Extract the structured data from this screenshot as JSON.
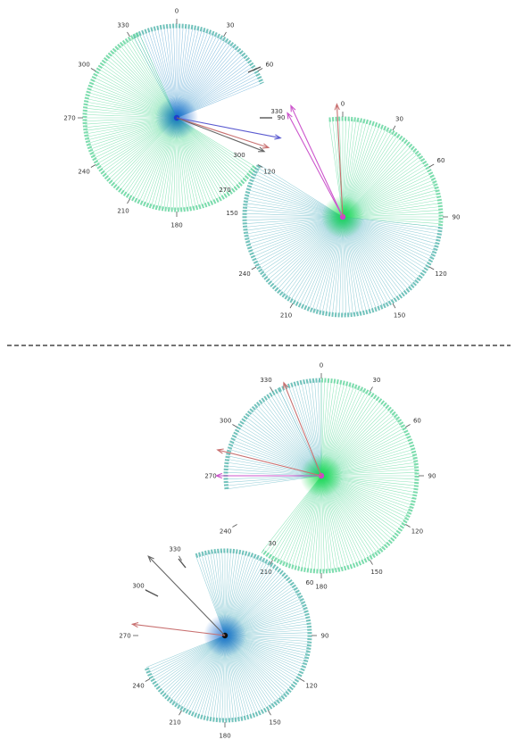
{
  "colors": {
    "ray_blue": "#2f8fc8",
    "ray_green": "#2fd080",
    "ray_teal": "#3aa6b8",
    "tip_teal": "#5ab8b0",
    "tip_green": "#66d6a0",
    "hub_blue": "#1f6fd0",
    "hub_green": "#22dd55",
    "black": "#111111",
    "arrow_blue": "#5a5ad0",
    "arrow_red": "#c87070",
    "arrow_magenta": "#cc55cc",
    "arrow_gray": "#666666",
    "tick": "#555555",
    "divider": "#222222"
  },
  "fans": [
    {
      "id": "fan-top-left",
      "hub_color": "#1f3fcc",
      "segments": [
        {
          "from": -28,
          "to": 68,
          "color": "blue"
        },
        {
          "from": 122,
          "to": 336,
          "color": "green"
        }
      ],
      "labels": [
        {
          "angle": 0,
          "text": "0"
        },
        {
          "angle": 30,
          "text": "30"
        },
        {
          "angle": 60,
          "text": "60"
        },
        {
          "angle": 120,
          "text": "120"
        },
        {
          "angle": 180,
          "text": "180"
        },
        {
          "angle": 210,
          "text": "210"
        },
        {
          "angle": 240,
          "text": "240"
        },
        {
          "angle": 270,
          "text": "270"
        },
        {
          "angle": 300,
          "text": "300"
        },
        {
          "angle": 330,
          "text": "330"
        }
      ],
      "extra_labels": [
        {
          "text": "300",
          "at": "inside-lower-right"
        },
        {
          "text": "270",
          "at": "inside-bottom-right"
        }
      ],
      "arrows": [
        {
          "angle": 101,
          "length": 1.15,
          "color": "blue"
        },
        {
          "angle": 108,
          "length": 1.05,
          "color": "red"
        },
        {
          "angle": 111,
          "length": 1.02,
          "color": "gray"
        }
      ]
    },
    {
      "id": "fan-top-right",
      "hub_color": "#cc44cc",
      "segments": [
        {
          "from": -8,
          "to": 96,
          "color": "green"
        },
        {
          "from": 96,
          "to": 302,
          "color": "teal"
        }
      ],
      "labels": [
        {
          "angle": 0,
          "text": "0"
        },
        {
          "angle": 30,
          "text": "30"
        },
        {
          "angle": 60,
          "text": "60"
        },
        {
          "angle": 90,
          "text": "90"
        },
        {
          "angle": 120,
          "text": "120"
        },
        {
          "angle": 150,
          "text": "150"
        },
        {
          "angle": 210,
          "text": "210"
        },
        {
          "angle": 240,
          "text": "240"
        }
      ],
      "extra_labels": [
        {
          "text": "330",
          "at": "upper-left-outside"
        },
        {
          "text": "90",
          "at": "upper-left-outside-2"
        },
        {
          "text": "150",
          "at": "left-edge"
        }
      ],
      "arrows": [
        {
          "angle": -25,
          "length": 1.25,
          "color": "magenta"
        },
        {
          "angle": -28,
          "length": 1.2,
          "color": "magenta"
        },
        {
          "angle": -3,
          "length": 1.15,
          "color": "red"
        }
      ]
    },
    {
      "id": "fan-bottom-right",
      "hub_color": "#cc44cc",
      "segments": [
        {
          "from": -26,
          "to": 0,
          "color": "teal"
        },
        {
          "from": 0,
          "to": 218,
          "color": "green"
        },
        {
          "from": 262,
          "to": 334,
          "color": "teal"
        }
      ],
      "labels": [
        {
          "angle": 0,
          "text": "0"
        },
        {
          "angle": 30,
          "text": "30"
        },
        {
          "angle": 60,
          "text": "60"
        },
        {
          "angle": 90,
          "text": "90"
        },
        {
          "angle": 120,
          "text": "120"
        },
        {
          "angle": 150,
          "text": "150"
        },
        {
          "angle": 180,
          "text": "180"
        },
        {
          "angle": 210,
          "text": "210"
        },
        {
          "angle": 240,
          "text": "240"
        },
        {
          "angle": 270,
          "text": "270"
        },
        {
          "angle": 300,
          "text": "300"
        },
        {
          "angle": 330,
          "text": "330"
        }
      ],
      "extra_labels": [
        {
          "text": "30",
          "at": "inside-lower-left"
        },
        {
          "text": "60",
          "at": "inside-bottom"
        }
      ],
      "arrows": [
        {
          "angle": 270,
          "length": 1.1,
          "color": "magenta"
        },
        {
          "angle": 284,
          "length": 1.12,
          "color": "red"
        },
        {
          "angle": 338,
          "length": 1.05,
          "color": "red"
        }
      ]
    },
    {
      "id": "fan-bottom-left",
      "hub_color": "#111111",
      "segments": [
        {
          "from": -20,
          "to": 248,
          "color": "teal"
        }
      ],
      "labels": [
        {
          "angle": 90,
          "text": "90"
        },
        {
          "angle": 120,
          "text": "120"
        },
        {
          "angle": 150,
          "text": "150"
        },
        {
          "angle": 180,
          "text": "180"
        },
        {
          "angle": 210,
          "text": "210"
        },
        {
          "angle": 240,
          "text": "240"
        },
        {
          "angle": 270,
          "text": "270"
        },
        {
          "angle": 300,
          "text": "300"
        },
        {
          "angle": 330,
          "text": "330"
        }
      ],
      "extra_labels": [],
      "arrows": [
        {
          "angle": 316,
          "length": 1.3,
          "color": "gray"
        },
        {
          "angle": 277,
          "length": 1.1,
          "color": "red"
        }
      ]
    }
  ]
}
